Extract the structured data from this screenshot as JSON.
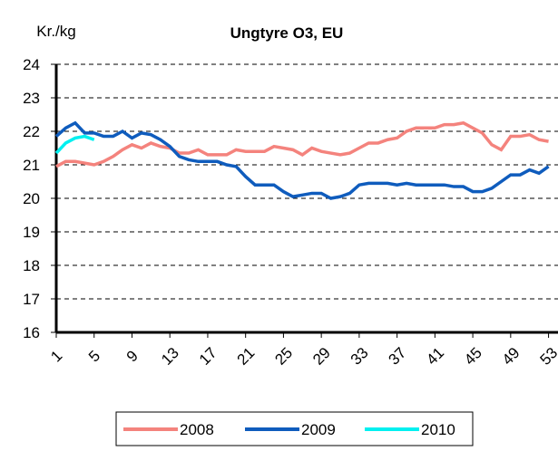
{
  "chart_data": {
    "type": "line",
    "title": "Ungtyre O3, EU",
    "y_label": "Kr./kg",
    "x": [
      1,
      2,
      3,
      4,
      5,
      6,
      7,
      8,
      9,
      10,
      11,
      12,
      13,
      14,
      15,
      16,
      17,
      18,
      19,
      20,
      21,
      22,
      23,
      24,
      25,
      26,
      27,
      28,
      29,
      30,
      31,
      32,
      33,
      34,
      35,
      36,
      37,
      38,
      39,
      40,
      41,
      42,
      43,
      44,
      45,
      46,
      47,
      48,
      49,
      50,
      51,
      52,
      53
    ],
    "series": [
      {
        "name": "2008",
        "color": "#f4837d",
        "values": [
          20.95,
          21.1,
          21.1,
          21.05,
          21.0,
          21.1,
          21.25,
          21.45,
          21.6,
          21.5,
          21.65,
          21.55,
          21.5,
          21.35,
          21.35,
          21.45,
          21.3,
          21.3,
          21.3,
          21.45,
          21.4,
          21.4,
          21.4,
          21.55,
          21.5,
          21.45,
          21.3,
          21.5,
          21.4,
          21.35,
          21.3,
          21.35,
          21.5,
          21.65,
          21.65,
          21.75,
          21.8,
          22.0,
          22.1,
          22.1,
          22.1,
          22.2,
          22.2,
          22.25,
          22.1,
          21.95,
          21.6,
          21.45,
          21.85,
          21.85,
          21.9,
          21.75,
          21.7
        ]
      },
      {
        "name": "2009",
        "color": "#0f5cbd",
        "values": [
          21.85,
          22.1,
          22.25,
          21.95,
          21.95,
          21.85,
          21.85,
          22.0,
          21.8,
          21.95,
          21.9,
          21.75,
          21.55,
          21.25,
          21.15,
          21.1,
          21.1,
          21.1,
          21.0,
          20.95,
          20.65,
          20.4,
          20.4,
          20.4,
          20.2,
          20.05,
          20.1,
          20.15,
          20.15,
          20.0,
          20.05,
          20.15,
          20.4,
          20.45,
          20.45,
          20.45,
          20.4,
          20.45,
          20.4,
          20.4,
          20.4,
          20.4,
          20.35,
          20.35,
          20.2,
          20.2,
          20.3,
          20.5,
          20.7,
          20.7,
          20.85,
          20.75,
          20.95
        ]
      },
      {
        "name": "2010",
        "color": "#00f0f0",
        "values": [
          21.35,
          21.65,
          21.8,
          21.85,
          21.75,
          null,
          null,
          null,
          null,
          null,
          null,
          null,
          null,
          null,
          null,
          null,
          null,
          null,
          null,
          null,
          null,
          null,
          null,
          null,
          null,
          null,
          null,
          null,
          null,
          null,
          null,
          null,
          null,
          null,
          null,
          null,
          null,
          null,
          null,
          null,
          null,
          null,
          null,
          null,
          null,
          null,
          null,
          null,
          null,
          null,
          null,
          null,
          null
        ]
      }
    ],
    "xlim": [
      1,
      54
    ],
    "xticks": [
      1,
      5,
      9,
      13,
      17,
      21,
      25,
      29,
      33,
      37,
      41,
      45,
      49,
      53
    ],
    "ylim": [
      16,
      24
    ],
    "yticks": [
      16,
      17,
      18,
      19,
      20,
      21,
      22,
      23,
      24
    ],
    "grid": true,
    "legend": "bottom"
  }
}
